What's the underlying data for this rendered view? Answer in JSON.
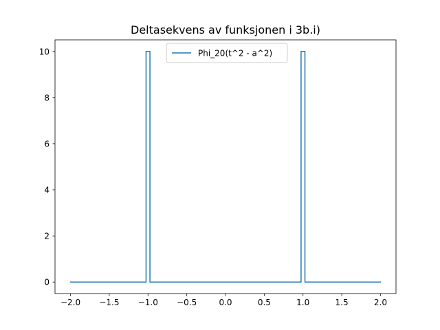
{
  "chart_data": {
    "type": "line",
    "title": "Deltasekvens av funksjonen i 3b.i)",
    "xlabel": "",
    "ylabel": "",
    "xlim": [
      -2.2,
      2.2
    ],
    "ylim": [
      -0.5,
      10.5
    ],
    "xticks": [
      -2.0,
      -1.5,
      -1.0,
      -0.5,
      0.0,
      0.5,
      1.0,
      1.5,
      2.0
    ],
    "xtick_labels": [
      "−2.0",
      "−1.5",
      "−1.0",
      "−0.5",
      "0.0",
      "0.5",
      "1.0",
      "1.5",
      "2.0"
    ],
    "yticks": [
      0,
      2,
      4,
      6,
      8,
      10
    ],
    "ytick_labels": [
      "0",
      "2",
      "4",
      "6",
      "8",
      "10"
    ],
    "grid": false,
    "legend_position": "upper center",
    "series": [
      {
        "name": "Phi_20(t^2 - a^2)",
        "color": "#1f77b4",
        "x": [
          -2.0,
          -1.025,
          -1.025,
          -0.975,
          -0.975,
          0.975,
          0.975,
          1.025,
          1.025,
          2.0
        ],
        "y": [
          0,
          0,
          10,
          10,
          0,
          0,
          10,
          10,
          0,
          0
        ]
      }
    ]
  }
}
